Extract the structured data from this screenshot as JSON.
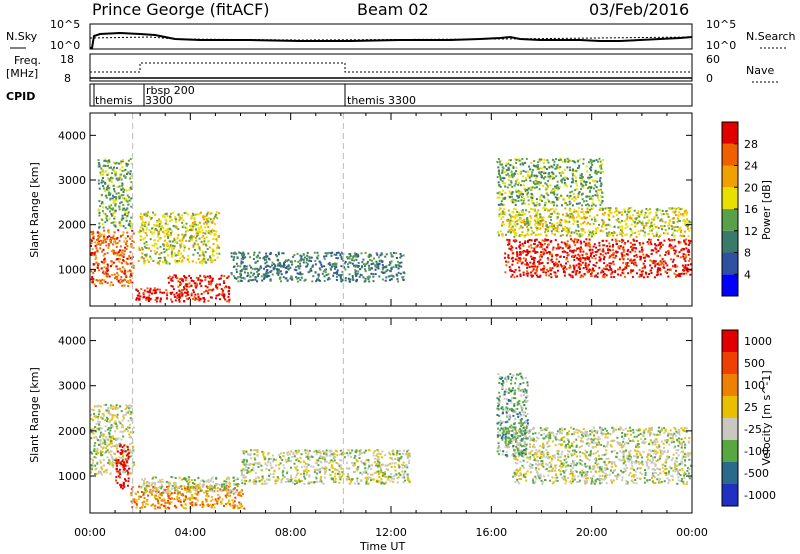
{
  "header": {
    "station": "Prince George (fitACF)",
    "beam": "Beam 02",
    "date": "03/Feb/2016"
  },
  "noise_panel": {
    "left_label": "N.Sky",
    "right_label": "N.Search",
    "left_ticks": [
      "10^5",
      "10^0"
    ],
    "right_ticks": [
      "10^5",
      "10^0"
    ]
  },
  "freq_panel": {
    "left_label_1": "Freq.",
    "left_label_2": "[MHz]",
    "right_label": "Nave",
    "left_ticks": [
      "18",
      "8"
    ],
    "right_ticks": [
      "60",
      "0"
    ]
  },
  "cpid_panel": {
    "label": "CPID",
    "modes": [
      {
        "name": "themis",
        "start": 0.0
      },
      {
        "name": "3300",
        "start": 1.6
      },
      {
        "name": "rbsp 200",
        "start": 2.0
      },
      {
        "name": "themis 3300",
        "start": 10.1
      }
    ]
  },
  "colors": {
    "power": [
      "#0000ff",
      "#3050a0",
      "#3a7a6a",
      "#5aa04a",
      "#e8e000",
      "#f0a000",
      "#f06000",
      "#e00000"
    ],
    "velocity": [
      "#2030c0",
      "#2a6a8a",
      "#58a840",
      "#c8c8c0",
      "#e8c000",
      "#f08000",
      "#f04000",
      "#e00000"
    ]
  },
  "chart_data": [
    {
      "type": "heatmap",
      "title": "Power",
      "xlabel": "Time UT",
      "ylabel": "Slant Range [km]",
      "x_ticks": [
        "00:00",
        "04:00",
        "08:00",
        "12:00",
        "16:00",
        "20:00",
        "00:00"
      ],
      "xlim": [
        0,
        24
      ],
      "ylim": [
        180,
        4500
      ],
      "y_ticks": [
        "1000",
        "2000",
        "3000",
        "4000"
      ],
      "colorbar_label": "Power [dB]",
      "colorbar_ticks": [
        "4",
        "8",
        "12",
        "16",
        "20",
        "24",
        "28"
      ],
      "regions": [
        {
          "t0": 0.0,
          "t1": 1.8,
          "r0": 600,
          "r1": 1900,
          "level": 6
        },
        {
          "t0": 0.3,
          "t1": 1.7,
          "r0": 1900,
          "r1": 3500,
          "level": 3
        },
        {
          "t0": 1.8,
          "t1": 3.0,
          "r0": 250,
          "r1": 600,
          "level": 7
        },
        {
          "t0": 3.0,
          "t1": 5.6,
          "r0": 250,
          "r1": 900,
          "level": 7
        },
        {
          "t0": 1.9,
          "t1": 5.2,
          "r0": 1100,
          "r1": 2300,
          "level": 4
        },
        {
          "t0": 5.6,
          "t1": 12.6,
          "r0": 700,
          "r1": 1400,
          "level": 2
        },
        {
          "t0": 16.5,
          "t1": 24.0,
          "r0": 800,
          "r1": 1700,
          "level": 7
        },
        {
          "t0": 16.2,
          "t1": 24.0,
          "r0": 1700,
          "r1": 2400,
          "level": 4
        },
        {
          "t0": 16.2,
          "t1": 20.5,
          "r0": 2400,
          "r1": 3500,
          "level": 3
        }
      ]
    },
    {
      "type": "heatmap",
      "title": "Velocity",
      "xlabel": "Time UT",
      "ylabel": "Slant Range [km]",
      "x_ticks": [
        "00:00",
        "04:00",
        "08:00",
        "12:00",
        "16:00",
        "20:00",
        "00:00"
      ],
      "xlim": [
        0,
        24
      ],
      "ylim": [
        180,
        4500
      ],
      "y_ticks": [
        "1000",
        "2000",
        "3000",
        "4000"
      ],
      "colorbar_label": "Velocity [m s^-1]",
      "colorbar_ticks": [
        "1000",
        "500",
        "100",
        "25",
        "-25",
        "-100",
        "-500",
        "-1000"
      ],
      "regions": [
        {
          "t0": 0.0,
          "t1": 1.8,
          "r0": 1000,
          "r1": 2600,
          "level": 3
        },
        {
          "t0": 1.0,
          "t1": 1.6,
          "r0": 700,
          "r1": 1700,
          "level": 7
        },
        {
          "t0": 1.6,
          "t1": 6.2,
          "r0": 250,
          "r1": 800,
          "level": 5
        },
        {
          "t0": 2.0,
          "t1": 6.0,
          "r0": 600,
          "r1": 1000,
          "level": 3
        },
        {
          "t0": 6.0,
          "t1": 12.8,
          "r0": 800,
          "r1": 1600,
          "level": 3
        },
        {
          "t0": 16.8,
          "t1": 24.0,
          "r0": 800,
          "r1": 1600,
          "level": 3
        },
        {
          "t0": 16.4,
          "t1": 24.0,
          "r0": 1600,
          "r1": 2100,
          "level": 3
        },
        {
          "t0": 16.2,
          "t1": 17.5,
          "r0": 1400,
          "r1": 3300,
          "level": 2
        }
      ]
    }
  ]
}
